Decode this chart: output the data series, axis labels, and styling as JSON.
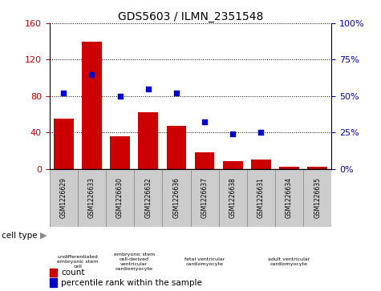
{
  "title": "GDS5603 / ILMN_2351548",
  "samples": [
    "GSM1226629",
    "GSM1226633",
    "GSM1226630",
    "GSM1226632",
    "GSM1226636",
    "GSM1226637",
    "GSM1226638",
    "GSM1226631",
    "GSM1226634",
    "GSM1226635"
  ],
  "counts": [
    55,
    140,
    36,
    62,
    47,
    18,
    8,
    10,
    2,
    2
  ],
  "percentiles": [
    52,
    65,
    50,
    55,
    52,
    32,
    24,
    25,
    null,
    null
  ],
  "ylim_left": [
    0,
    160
  ],
  "ylim_right": [
    0,
    100
  ],
  "yticks_left": [
    0,
    40,
    80,
    120,
    160
  ],
  "yticks_right": [
    0,
    25,
    50,
    75,
    100
  ],
  "ytick_labels_right": [
    "0%",
    "25%",
    "50%",
    "75%",
    "100%"
  ],
  "bar_color": "#cc0000",
  "dot_color": "#0000cc",
  "bg_color": "#ffffff",
  "cell_type_groups": [
    {
      "label": "undifferentiated\nembryonic stem\ncell",
      "start": 0,
      "end": 2,
      "color": "#ccffcc"
    },
    {
      "label": "embryonic stem\ncell-derived\nventricular\ncardiomyocyte",
      "start": 2,
      "end": 4,
      "color": "#ccffcc"
    },
    {
      "label": "fetal ventricular\ncardiomyocyte",
      "start": 4,
      "end": 7,
      "color": "#55ee55"
    },
    {
      "label": "adult ventricular\ncardiomyocyte",
      "start": 7,
      "end": 10,
      "color": "#55ee55"
    }
  ],
  "xticklabel_bg": "#cccccc",
  "tick_label_color_left": "#cc0000",
  "tick_label_color_right": "#0000cc",
  "legend_count_label": "count",
  "legend_percentile_label": "percentile rank within the sample",
  "cell_type_label": "cell type",
  "cell_type_arrow": "▶"
}
